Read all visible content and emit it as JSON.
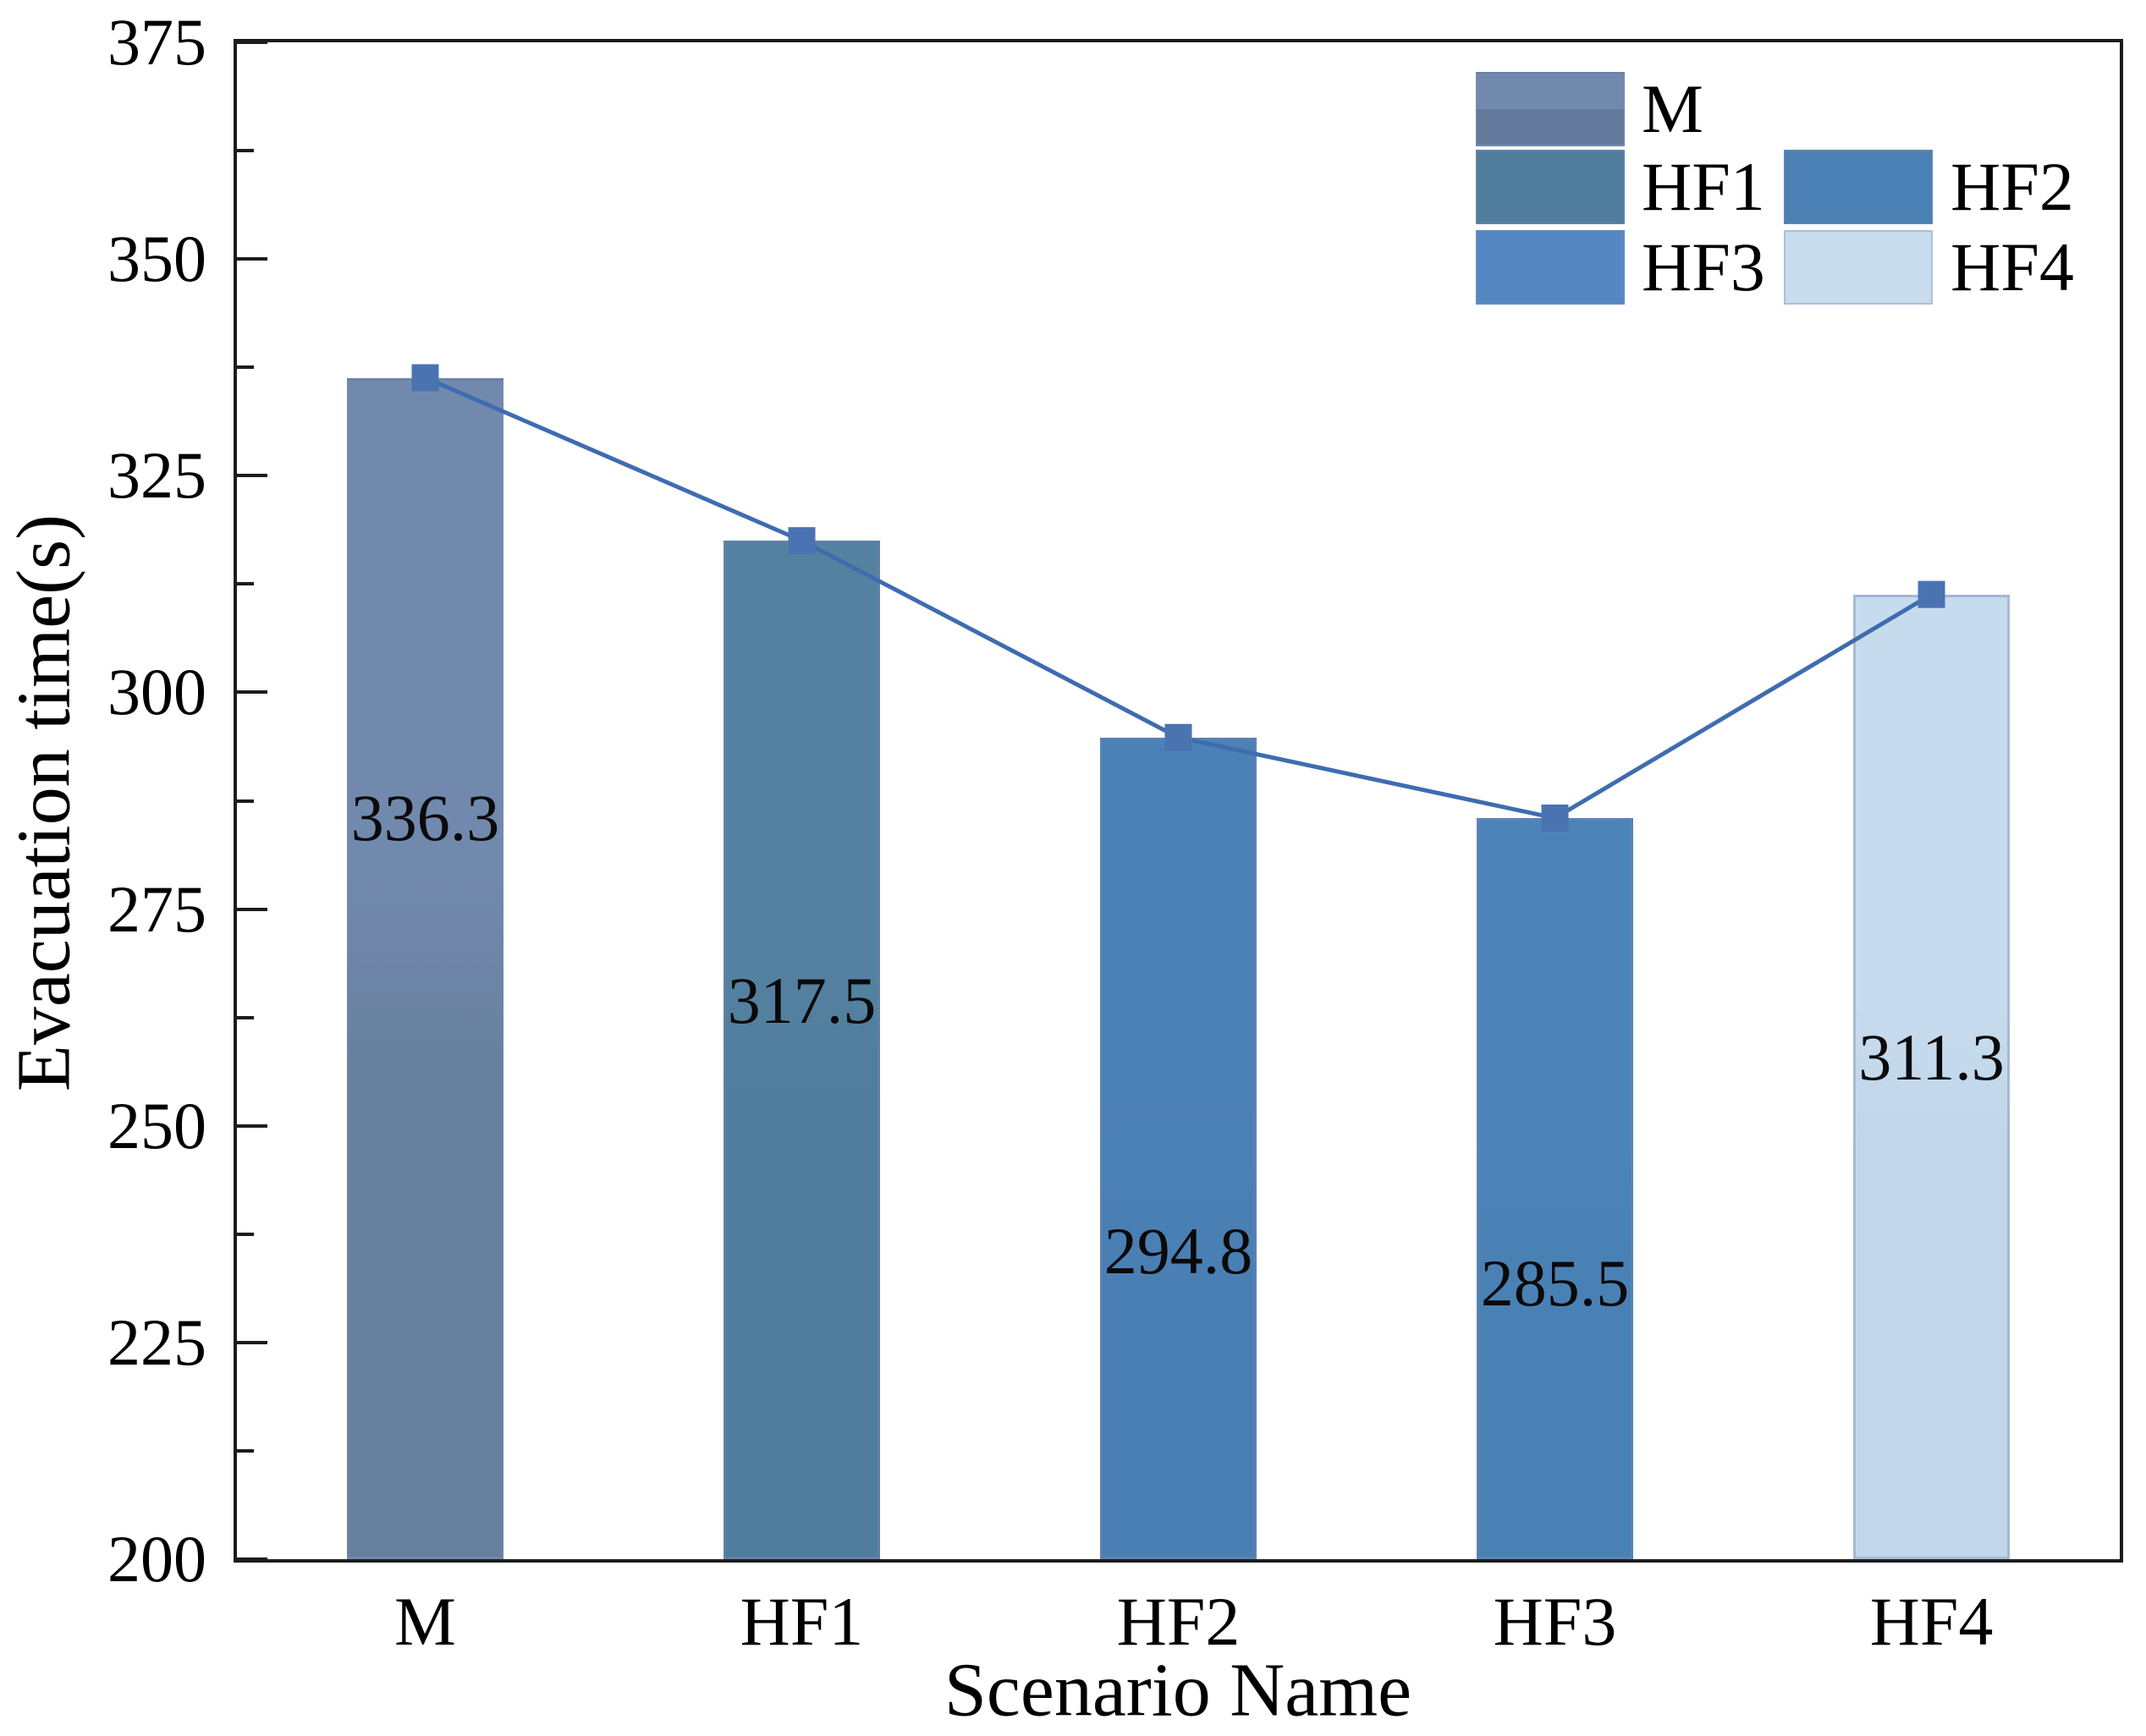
{
  "chart_data": {
    "type": "bar",
    "subtype": "bar-with-line-markers",
    "title": "",
    "categories": [
      "M",
      "HF1",
      "HF2",
      "HF3",
      "HF4"
    ],
    "series": [
      {
        "name": "Evacuation time",
        "values": [
          336.3,
          317.5,
          294.8,
          285.5,
          311.3
        ]
      }
    ],
    "bar_value_labels": [
      "336.3",
      "317.5",
      "294.8",
      "285.5",
      "311.3"
    ],
    "value_label_y_units": [
      285.5,
      264.4,
      235.5,
      231.8,
      257.9
    ],
    "xlabel": "Scenario Name",
    "ylabel": "Evacuation time(s)",
    "ylim": [
      200,
      375
    ],
    "ytick_major_step": 25,
    "ytick_minor_step": 12.5,
    "ytick_labels": [
      "200",
      "225",
      "250",
      "275",
      "300",
      "325",
      "350",
      "375"
    ],
    "grid": "off",
    "legend_position": "upper-right-inside",
    "colors": {
      "bar_fills_top": [
        "#7289AE",
        "#5581A1",
        "#4C81B5",
        "#4C84BA",
        "#C7DBEE"
      ],
      "bar_fills_bottom": [
        "#68809F",
        "#4F7C9B",
        "#4A7FB3",
        "#4A81B5",
        "#C2D6EA"
      ],
      "line": "#3E6CB0",
      "marker": "#4A73B2",
      "axis": "#1c1c1c",
      "text": "#000000"
    },
    "legend": [
      {
        "label": "M",
        "fill_top": "#7289AE",
        "fill_bottom": "#647A9C",
        "col": 0,
        "row": 0
      },
      {
        "label": "HF1",
        "fill_top": "#507D9B",
        "fill_bottom": "#507D9B",
        "col": 0,
        "row": 1
      },
      {
        "label": "HF2",
        "fill_top": "#4B80B4",
        "fill_bottom": "#4B80B4",
        "col": 1,
        "row": 1
      },
      {
        "label": "HF3",
        "fill_top": "#5588C3",
        "fill_bottom": "#5588C3",
        "col": 0,
        "row": 2
      },
      {
        "label": "HF4",
        "fill_top": "#C8DCEE",
        "fill_bottom": "#C8DCEE",
        "col": 1,
        "row": 2
      }
    ]
  }
}
